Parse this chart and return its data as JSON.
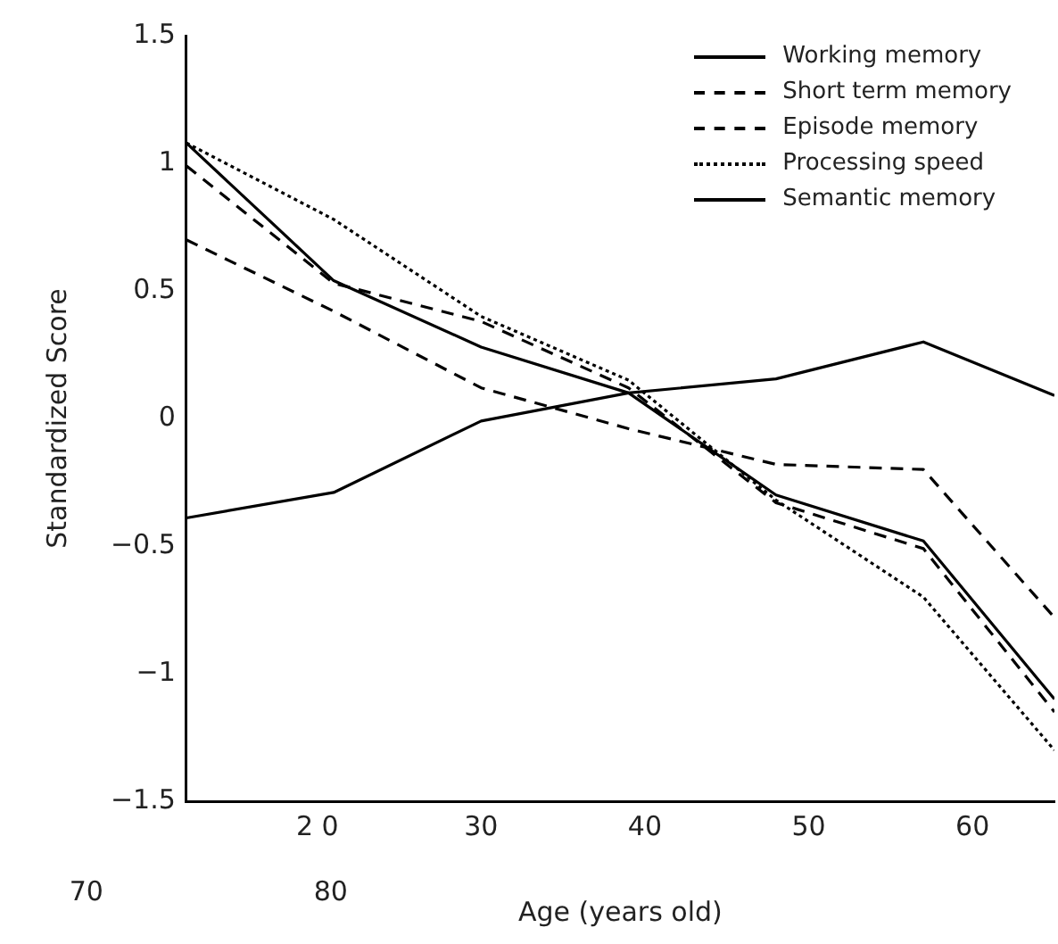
{
  "chart_data": {
    "type": "line",
    "xlabel": "Age (years old)",
    "ylabel": "Standardized Score",
    "x": [
      12,
      21,
      30,
      39,
      48,
      57,
      65
    ],
    "xlim": [
      12,
      65
    ],
    "xticks": [
      {
        "value": 20,
        "label": "2 0"
      },
      30,
      40,
      50,
      60
    ],
    "ylim": [
      -1.5,
      1.5
    ],
    "yticks": [
      {
        "value": -1.5,
        "label": "−1.5"
      },
      {
        "value": -1,
        "label": "−1"
      },
      {
        "value": -0.5,
        "label": "−0.5"
      },
      0,
      0.5,
      1,
      1.5
    ],
    "annotations": [
      "70",
      "80"
    ],
    "grid": false,
    "legend": "top right",
    "marker": "none",
    "series": [
      {
        "name": "Working memory",
        "color": "#000000",
        "line_style": "solid",
        "values": [
          1.08,
          0.54,
          0.28,
          0.1,
          -0.3,
          -0.48,
          -1.1
        ]
      },
      {
        "name": "Short term memory",
        "color": "#000000",
        "line_style": "dashed",
        "values": [
          0.7,
          0.42,
          0.12,
          -0.04,
          -0.18,
          -0.2,
          -0.78
        ]
      },
      {
        "name": "Episode memory",
        "color": "#000000",
        "line_style": "dashed",
        "values": [
          0.99,
          0.53,
          0.38,
          0.12,
          -0.33,
          -0.51,
          -1.15
        ]
      },
      {
        "name": "Processing speed",
        "color": "#000000",
        "line_style": "dotted",
        "values": [
          1.08,
          0.78,
          0.4,
          0.15,
          -0.32,
          -0.7,
          -1.3
        ]
      },
      {
        "name": "Semantic memory",
        "color": "#000000",
        "line_style": "solid",
        "values": [
          -0.39,
          -0.29,
          -0.01,
          0.1,
          0.155,
          0.3,
          0.09
        ]
      }
    ]
  }
}
